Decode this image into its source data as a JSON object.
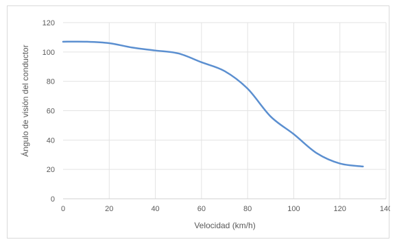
{
  "chart_data": {
    "type": "line",
    "title": "",
    "xlabel": "Velocidad (km/h)",
    "ylabel": "Ángulo de visión del conductor",
    "xlim": [
      0,
      140
    ],
    "ylim": [
      0,
      120
    ],
    "x_ticks": [
      "0",
      "20",
      "40",
      "60",
      "80",
      "100",
      "120",
      "140"
    ],
    "y_ticks": [
      "0",
      "20",
      "40",
      "60",
      "80",
      "100",
      "120"
    ],
    "grid": "vertical and horizontal",
    "legend": "none",
    "series": [
      {
        "color": "#5b8fd0",
        "x": [
          0,
          10,
          20,
          30,
          40,
          50,
          60,
          70,
          80,
          90,
          100,
          110,
          120,
          130
        ],
        "values": [
          107,
          107,
          106,
          103,
          101,
          99,
          93,
          87,
          75,
          56,
          44,
          31,
          24,
          22
        ]
      }
    ]
  }
}
